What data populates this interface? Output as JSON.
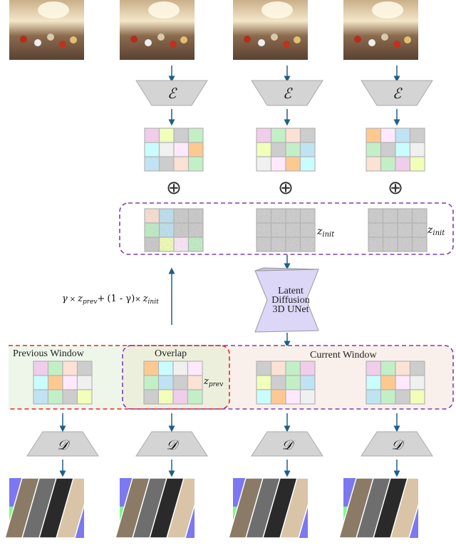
{
  "colors": {
    "arrow": "#1f5f86",
    "purple_dash": "#7b3fb5",
    "red_dash": "#e8262a",
    "encoder": "#d4d4d4",
    "unet": "#dcd6f7",
    "prev_bg": "#eef6ea",
    "overlap_bg": "#edefdd",
    "current_bg": "#faf0eb"
  },
  "palette": {
    "pink": "#f0cdeb",
    "yellow": "#f1ffb8",
    "gray": "#cdcdcd",
    "green": "#c3efc7",
    "cyan": "#c9fdfd",
    "light": "#f0f0f0",
    "lav": "#fde9fb",
    "orange": "#fec991",
    "blue": "#bfe3f2",
    "peach": "#fbe2d4"
  },
  "encoder": {
    "symbol": "ℰ"
  },
  "decoder": {
    "symbol": "𝒟"
  },
  "latent_grids": [
    [
      "pink",
      "yellow",
      "gray",
      "green",
      "cyan",
      "light",
      "lav",
      "orange",
      "blue",
      "gray",
      "peach",
      "green"
    ],
    [
      "pink",
      "green",
      "peach",
      "gray",
      "yellow",
      "gray",
      "green",
      "blue",
      "light",
      "lav",
      "orange",
      "cyan"
    ],
    [
      "orange",
      "lav",
      "blue",
      "gray",
      "green",
      "gray",
      "cyan",
      "light",
      "peach",
      "green",
      "pink",
      "yellow"
    ]
  ],
  "noise_tints": [
    [
      "peach",
      "blue",
      "gray",
      "gray",
      "green",
      "blue",
      "gray",
      "gray",
      "gray",
      "yellow",
      "lav",
      "green"
    ]
  ],
  "plus_symbol": "⊕",
  "z_init": {
    "base": "z",
    "sub": "init"
  },
  "z_prev": {
    "base": "z",
    "sub": "prev"
  },
  "formula": {
    "gamma": "γ",
    "times": "×",
    "plus": "+",
    "one_minus": "(1 - γ)"
  },
  "unet": {
    "line1": "Latent",
    "line2": "Diffusion",
    "line3": "3D UNet"
  },
  "windows": {
    "previous": "Previous Window",
    "overlap": "Overlap",
    "current": "Current Window"
  },
  "output_grids": [
    [
      "pink",
      "green",
      "peach",
      "gray",
      "cyan",
      "orange",
      "lav",
      "light",
      "blue",
      "green",
      "gray",
      "yellow"
    ],
    [
      "orange",
      "cyan",
      "light",
      "lav",
      "green",
      "blue",
      "gray",
      "peach",
      "gray",
      "yellow",
      "pink",
      "green"
    ],
    [
      "gray",
      "peach",
      "green",
      "pink",
      "yellow",
      "gray",
      "green",
      "blue",
      "cyan",
      "orange",
      "lav",
      "light"
    ],
    [
      "pink",
      "green",
      "peach",
      "gray",
      "cyan",
      "orange",
      "lav",
      "light",
      "blue",
      "green",
      "gray",
      "yellow"
    ]
  ]
}
